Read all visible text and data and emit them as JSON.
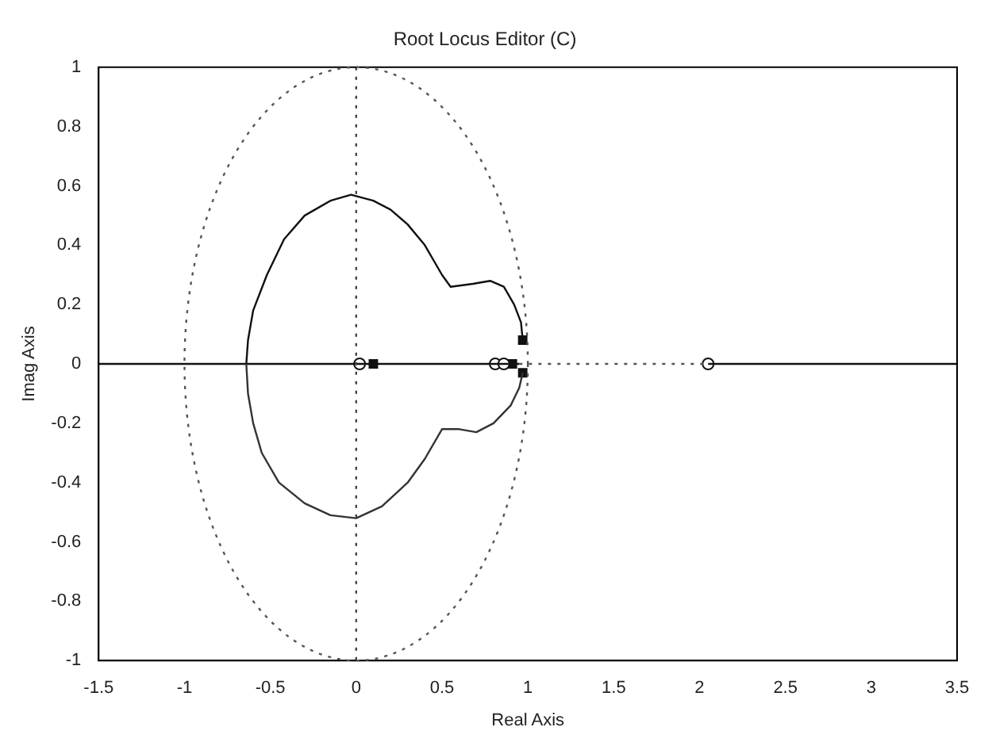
{
  "chart_data": {
    "type": "line",
    "title": "Root Locus Editor (C)",
    "xlabel": "Real Axis",
    "ylabel": "Imag Axis",
    "xlim": [
      -1.5,
      3.5
    ],
    "ylim": [
      -1,
      1
    ],
    "xticks": [
      -1.5,
      -1,
      -0.5,
      0,
      0.5,
      1,
      1.5,
      2,
      2.5,
      3,
      3.5
    ],
    "yticks": [
      -1,
      -0.8,
      -0.6,
      -0.4,
      -0.2,
      0,
      0.2,
      0.4,
      0.6,
      0.8,
      1
    ],
    "grid": false,
    "legend": false,
    "ref_lines": [
      {
        "axis": "x",
        "value": 0,
        "color": "#444444",
        "line_style": "dotted"
      }
    ],
    "series": [
      {
        "type": "line",
        "color": "#111111",
        "line_style": "solid",
        "marker": "none",
        "x": [
          -0.64,
          -0.63,
          -0.6,
          -0.52,
          -0.42,
          -0.3,
          -0.15,
          -0.03,
          0.1,
          0.2,
          0.3,
          0.4,
          0.5,
          0.55,
          0.68,
          0.78,
          0.86,
          0.92,
          0.96,
          0.97
        ],
        "values": [
          0,
          0.08,
          0.18,
          0.3,
          0.42,
          0.5,
          0.55,
          0.57,
          0.55,
          0.52,
          0.47,
          0.4,
          0.3,
          0.26,
          0.27,
          0.28,
          0.26,
          0.2,
          0.14,
          0.08
        ]
      },
      {
        "type": "line",
        "color": "#333333",
        "line_style": "solid",
        "marker": "none",
        "x": [
          -0.64,
          -0.63,
          -0.6,
          -0.55,
          -0.45,
          -0.3,
          -0.15,
          0,
          0.15,
          0.3,
          0.4,
          0.5,
          0.6,
          0.7,
          0.8,
          0.9,
          0.95,
          0.97
        ],
        "values": [
          0,
          -0.1,
          -0.2,
          -0.3,
          -0.4,
          -0.47,
          -0.51,
          -0.52,
          -0.48,
          -0.4,
          -0.32,
          -0.22,
          -0.22,
          -0.23,
          -0.2,
          -0.14,
          -0.08,
          -0.03
        ]
      },
      {
        "type": "line",
        "color": "#111111",
        "line_style": "solid",
        "marker": "none",
        "x": [
          -1.5,
          0.95,
          1.5,
          2.05,
          3.5
        ],
        "values": [
          0,
          0,
          null,
          0,
          0
        ]
      },
      {
        "type": "line",
        "color": "#555555",
        "line_style": "dotted",
        "marker": "none",
        "x": [
          0.95,
          2.05
        ],
        "values": [
          0,
          0
        ]
      },
      {
        "type": "scatter",
        "color": "#111111",
        "marker": "circle",
        "x": [
          0.02,
          0.81,
          0.86,
          2.05
        ],
        "values": [
          0,
          0,
          0,
          0
        ]
      },
      {
        "type": "scatter",
        "color": "#111111",
        "marker": "square",
        "x": [
          0.1,
          0.91,
          0.97,
          0.97
        ],
        "values": [
          0,
          0,
          0.08,
          -0.03
        ]
      }
    ]
  }
}
